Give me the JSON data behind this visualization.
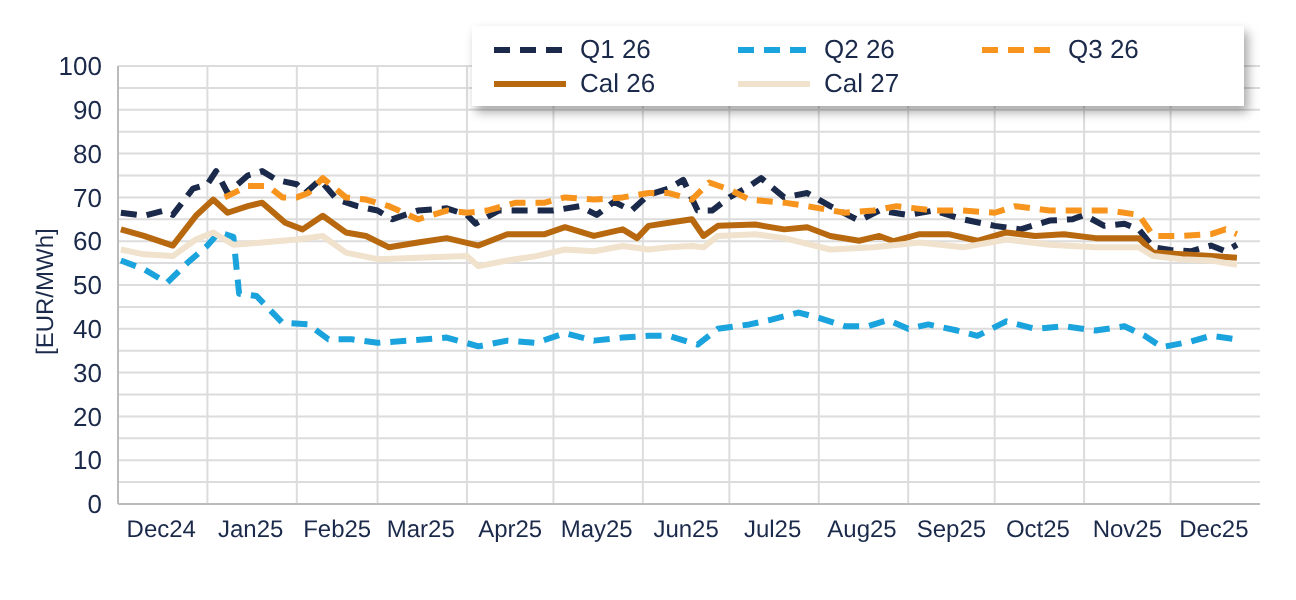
{
  "chart_data": {
    "type": "line",
    "ylabel": "[EUR/MWh]",
    "legend": "top right",
    "grid": true,
    "xlim": [
      "2024-12-01",
      "2026-01-01"
    ],
    "xticks": [
      {
        "value": "2024-12-16",
        "label": "Dec24"
      },
      {
        "value": "2025-01-01",
        "label": null
      },
      {
        "value": "2025-01-16",
        "label": "Jan25"
      },
      {
        "value": "2025-02-01",
        "label": null
      },
      {
        "value": "2025-02-15",
        "label": "Feb25"
      },
      {
        "value": "2025-03-01",
        "label": null
      },
      {
        "value": "2025-03-16",
        "label": "Mar25"
      },
      {
        "value": "2025-04-01",
        "label": null
      },
      {
        "value": "2025-04-16",
        "label": "Apr25"
      },
      {
        "value": "2025-05-01",
        "label": null
      },
      {
        "value": "2025-05-16",
        "label": "May25"
      },
      {
        "value": "2025-06-01",
        "label": null
      },
      {
        "value": "2025-06-16",
        "label": "Jun25"
      },
      {
        "value": "2025-07-01",
        "label": null
      },
      {
        "value": "2025-07-16",
        "label": "Jul25"
      },
      {
        "value": "2025-08-01",
        "label": null
      },
      {
        "value": "2025-08-16",
        "label": "Aug25"
      },
      {
        "value": "2025-09-01",
        "label": null
      },
      {
        "value": "2025-09-16",
        "label": "Sep25"
      },
      {
        "value": "2025-10-01",
        "label": null
      },
      {
        "value": "2025-10-16",
        "label": "Oct25"
      },
      {
        "value": "2025-11-01",
        "label": null
      },
      {
        "value": "2025-11-16",
        "label": "Nov25"
      },
      {
        "value": "2025-12-01",
        "label": null
      },
      {
        "value": "2025-12-16",
        "label": "Dec25"
      }
    ],
    "ylim": [
      0,
      100
    ],
    "yticks": [
      0,
      {
        "value": 5,
        "label": null
      },
      10,
      {
        "value": 15,
        "label": null
      },
      20,
      {
        "value": 25,
        "label": null
      },
      30,
      {
        "value": 35,
        "label": null
      },
      40,
      {
        "value": 45,
        "label": null
      },
      50,
      {
        "value": 55,
        "label": null
      },
      60,
      {
        "value": 65,
        "label": null
      },
      70,
      {
        "value": 75,
        "label": null
      },
      80,
      {
        "value": 85,
        "label": null
      },
      90,
      {
        "value": 95,
        "label": null
      },
      100
    ],
    "series": [
      {
        "name": "Q1 26",
        "color": "#1b2a4a",
        "line_style": "dashed",
        "x": [
          "2024-12-02",
          "2024-12-10",
          "2024-12-17",
          "2024-12-20",
          "2024-12-27",
          "2025-01-01",
          "2025-01-04",
          "2025-01-08",
          "2025-01-15",
          "2025-01-20",
          "2025-01-25",
          "2025-02-01",
          "2025-02-04",
          "2025-02-09",
          "2025-02-15",
          "2025-02-22",
          "2025-03-01",
          "2025-03-06",
          "2025-03-15",
          "2025-03-25",
          "2025-04-01",
          "2025-04-04",
          "2025-04-12",
          "2025-04-22",
          "2025-05-01",
          "2025-05-10",
          "2025-05-16",
          "2025-05-22",
          "2025-05-28",
          "2025-06-03",
          "2025-06-10",
          "2025-06-15",
          "2025-06-20",
          "2025-06-25",
          "2025-07-01",
          "2025-07-08",
          "2025-07-12",
          "2025-07-20",
          "2025-07-28",
          "2025-08-05",
          "2025-08-15",
          "2025-08-22",
          "2025-09-01",
          "2025-09-10",
          "2025-09-20",
          "2025-10-01",
          "2025-10-10",
          "2025-10-20",
          "2025-10-28",
          "2025-11-01",
          "2025-11-08",
          "2025-11-15",
          "2025-11-20",
          "2025-11-25",
          "2025-12-01",
          "2025-12-08",
          "2025-12-15",
          "2025-12-20",
          "2025-12-24"
        ],
        "values": [
          66.5,
          65.8,
          67,
          66,
          72,
          73,
          76,
          71,
          75,
          76,
          74,
          73,
          71,
          74,
          69.5,
          68,
          67,
          65,
          67,
          67.5,
          66,
          64,
          67,
          67,
          67,
          68,
          66,
          69,
          67,
          70.6,
          72,
          74,
          67,
          67,
          70,
          72.6,
          74.4,
          70,
          71,
          68,
          64.7,
          67,
          66,
          67,
          65,
          63.5,
          62.7,
          64.7,
          65,
          66,
          63.5,
          64,
          62.7,
          58.6,
          58,
          57.7,
          59,
          57.7,
          59.2
        ]
      },
      {
        "name": "Q2 26",
        "color": "#1aa3dc",
        "line_style": "dashed",
        "x": [
          "2024-12-02",
          "2024-12-10",
          "2024-12-18",
          "2024-12-25",
          "2025-01-01",
          "2025-01-05",
          "2025-01-10",
          "2025-01-12",
          "2025-01-18",
          "2025-01-27",
          "2025-02-05",
          "2025-02-12",
          "2025-02-20",
          "2025-03-01",
          "2025-03-12",
          "2025-03-25",
          "2025-04-05",
          "2025-04-15",
          "2025-04-25",
          "2025-05-05",
          "2025-05-15",
          "2025-05-25",
          "2025-06-03",
          "2025-06-10",
          "2025-06-20",
          "2025-06-27",
          "2025-07-08",
          "2025-07-15",
          "2025-07-25",
          "2025-08-01",
          "2025-08-10",
          "2025-08-18",
          "2025-08-25",
          "2025-09-01",
          "2025-09-08",
          "2025-09-18",
          "2025-09-25",
          "2025-10-05",
          "2025-10-15",
          "2025-10-25",
          "2025-11-05",
          "2025-11-15",
          "2025-11-22",
          "2025-11-28",
          "2025-12-08",
          "2025-12-15",
          "2025-12-24"
        ],
        "values": [
          55.6,
          53.6,
          50.5,
          55,
          59,
          62,
          61,
          48,
          47.5,
          41.4,
          41,
          37.6,
          37.6,
          36.8,
          37.3,
          38,
          36,
          37.3,
          36.8,
          39,
          37.3,
          38,
          38.4,
          38.4,
          36.4,
          40,
          41,
          42,
          43.7,
          42.5,
          40.6,
          40.6,
          42,
          40,
          41,
          39.6,
          38.4,
          41.7,
          40,
          40.6,
          39.6,
          40.6,
          38.4,
          35.8,
          37.1,
          38.4,
          37.6
        ]
      },
      {
        "name": "Q3 26",
        "color": "#f7941d",
        "line_style": "dashed",
        "x": [
          "2025-01-07",
          "2025-01-15",
          "2025-01-22",
          "2025-01-27",
          "2025-02-01",
          "2025-02-05",
          "2025-02-10",
          "2025-02-18",
          "2025-02-25",
          "2025-03-05",
          "2025-03-15",
          "2025-03-25",
          "2025-04-01",
          "2025-04-08",
          "2025-04-18",
          "2025-04-28",
          "2025-05-05",
          "2025-05-15",
          "2025-05-25",
          "2025-06-03",
          "2025-06-10",
          "2025-06-18",
          "2025-06-24",
          "2025-07-01",
          "2025-07-08",
          "2025-07-20",
          "2025-07-28",
          "2025-08-10",
          "2025-08-20",
          "2025-08-28",
          "2025-09-10",
          "2025-09-20",
          "2025-10-01",
          "2025-10-08",
          "2025-10-20",
          "2025-11-01",
          "2025-11-10",
          "2025-11-20",
          "2025-11-25",
          "2025-12-05",
          "2025-12-15",
          "2025-12-20",
          "2025-12-24"
        ],
        "values": [
          70,
          72.6,
          72.6,
          70,
          70,
          71,
          74.4,
          70,
          69.5,
          68,
          65,
          67,
          66.5,
          67,
          68.8,
          68.8,
          70,
          69.5,
          70,
          71,
          71,
          69.5,
          73.4,
          71.8,
          69.5,
          68.8,
          68,
          66.5,
          67,
          68,
          67,
          67,
          66.5,
          68,
          67,
          67,
          67,
          66,
          61.2,
          61.2,
          61.6,
          62.7,
          61.6
        ]
      },
      {
        "name": "Cal 26",
        "color": "#b8690f",
        "line_style": "solid",
        "x": [
          "2024-12-02",
          "2024-12-10",
          "2024-12-20",
          "2024-12-28",
          "2025-01-03",
          "2025-01-08",
          "2025-01-15",
          "2025-01-20",
          "2025-01-28",
          "2025-02-03",
          "2025-02-10",
          "2025-02-18",
          "2025-02-25",
          "2025-03-05",
          "2025-03-15",
          "2025-03-25",
          "2025-04-05",
          "2025-04-15",
          "2025-04-28",
          "2025-05-05",
          "2025-05-15",
          "2025-05-25",
          "2025-05-30",
          "2025-06-03",
          "2025-06-10",
          "2025-06-18",
          "2025-06-22",
          "2025-06-27",
          "2025-07-10",
          "2025-07-20",
          "2025-07-28",
          "2025-08-05",
          "2025-08-15",
          "2025-08-22",
          "2025-08-27",
          "2025-09-05",
          "2025-09-15",
          "2025-09-25",
          "2025-10-05",
          "2025-10-15",
          "2025-10-25",
          "2025-11-05",
          "2025-11-20",
          "2025-11-25",
          "2025-12-05",
          "2025-12-15",
          "2025-12-24"
        ],
        "values": [
          62.7,
          61.2,
          59,
          65.8,
          69.5,
          66.5,
          68,
          68.8,
          64.2,
          62.7,
          65.8,
          62,
          61.2,
          58.6,
          59.7,
          60.7,
          59,
          61.6,
          61.6,
          63.2,
          61.2,
          62.7,
          60.7,
          63.5,
          64.2,
          65,
          61.2,
          63.5,
          63.8,
          62.7,
          63.2,
          61.2,
          60.1,
          61.2,
          60,
          61.6,
          61.6,
          60.1,
          62,
          61.2,
          61.6,
          60.7,
          60.7,
          57.4,
          57,
          56.6,
          56.2
        ]
      },
      {
        "name": "Cal 27",
        "color": "#f0e2cc",
        "line_style": "solid",
        "x": [
          "2024-12-02",
          "2024-12-10",
          "2024-12-20",
          "2024-12-28",
          "2025-01-03",
          "2025-01-10",
          "2025-01-20",
          "2025-02-01",
          "2025-02-10",
          "2025-02-18",
          "2025-03-01",
          "2025-03-15",
          "2025-04-01",
          "2025-04-05",
          "2025-04-15",
          "2025-04-25",
          "2025-05-05",
          "2025-05-15",
          "2025-05-25",
          "2025-06-03",
          "2025-06-10",
          "2025-06-18",
          "2025-06-22",
          "2025-06-27",
          "2025-07-10",
          "2025-07-20",
          "2025-08-05",
          "2025-08-20",
          "2025-09-05",
          "2025-09-20",
          "2025-10-05",
          "2025-10-20",
          "2025-11-05",
          "2025-11-20",
          "2025-11-25",
          "2025-12-05",
          "2025-12-15",
          "2025-12-24"
        ],
        "values": [
          58.1,
          57,
          56.6,
          60.4,
          62,
          59.2,
          59.7,
          60.4,
          61.2,
          57.4,
          55.9,
          56.2,
          56.6,
          54.3,
          55.6,
          56.6,
          58.1,
          57.7,
          58.9,
          58.1,
          58.6,
          58.9,
          58.6,
          61.2,
          61.6,
          60.7,
          58.1,
          58.6,
          59.7,
          58.6,
          60.4,
          59.2,
          58.6,
          58.6,
          56.6,
          55.9,
          55.6,
          54.6
        ]
      }
    ]
  }
}
